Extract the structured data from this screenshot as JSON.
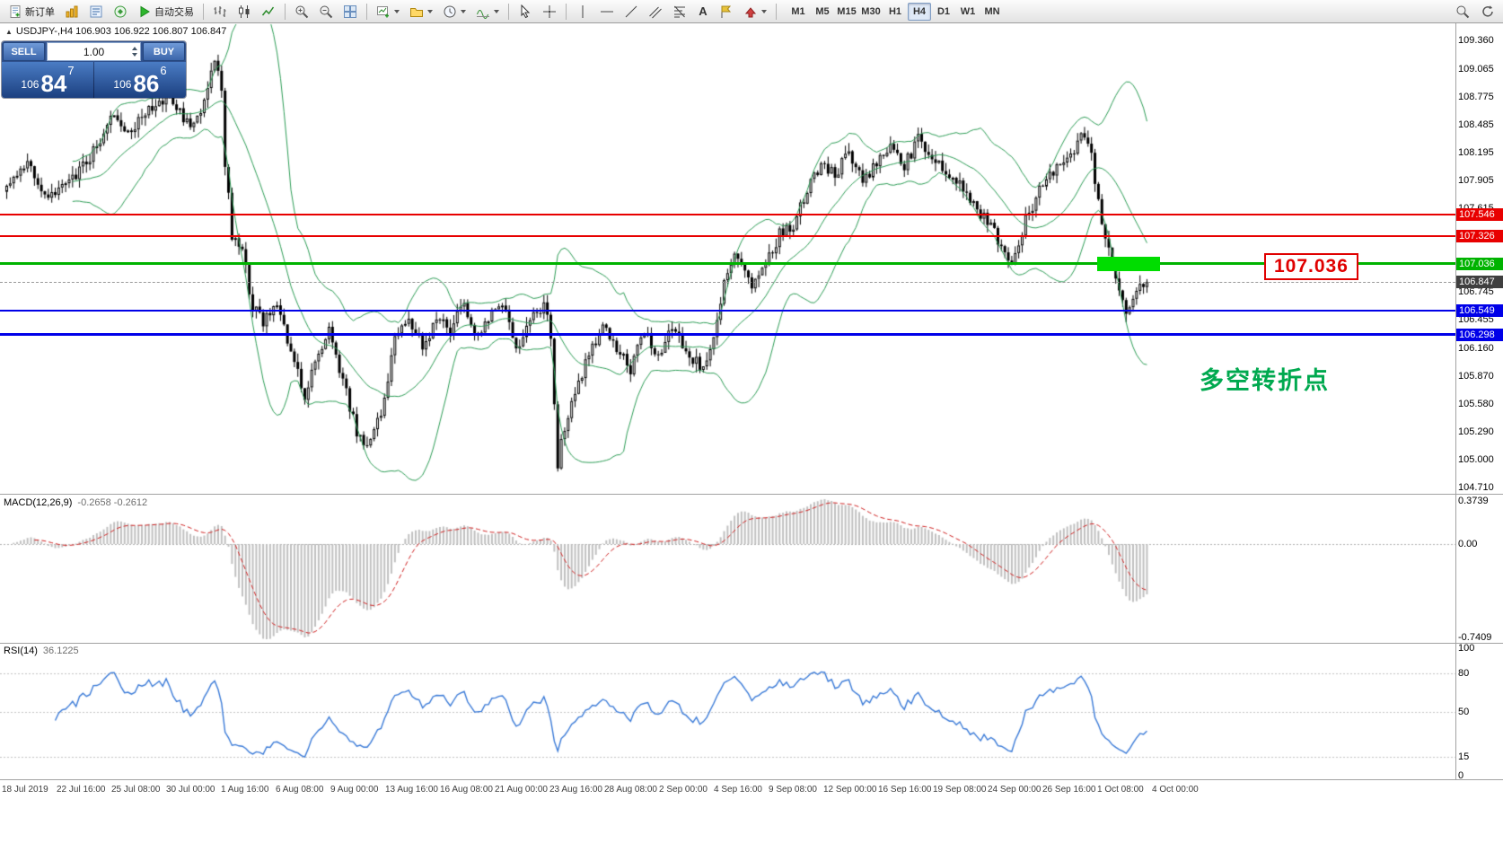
{
  "toolbar": {
    "new_order_label": "新订单",
    "auto_trading_label": "自动交易",
    "text_tool_label": "A",
    "timeframes": [
      "M1",
      "M5",
      "M15",
      "M30",
      "H1",
      "H4",
      "D1",
      "W1",
      "MN"
    ],
    "active_timeframe": "H4"
  },
  "chart": {
    "collapse_arrow": "▲",
    "symbol_line": "USDJPY-,H4  106.903 106.922 106.807 106.847",
    "trade_panel": {
      "sell_label": "SELL",
      "buy_label": "BUY",
      "volume": "1.00",
      "sell_price": {
        "prefix": "106",
        "big": "84",
        "sup": "7"
      },
      "buy_price": {
        "prefix": "106",
        "big": "86",
        "sup": "6"
      }
    },
    "callout_text": "107.036",
    "annotation_text": "多空转折点",
    "macd_label": "MACD(12,26,9)",
    "macd_values": "-0.2658 -0.2612",
    "rsi_label": "RSI(14)",
    "rsi_value": "36.1225"
  },
  "chart_data": {
    "type": "candlestick",
    "symbol": "USDJPY-",
    "timeframe": "H4",
    "ohlc": {
      "open": 106.903,
      "high": 106.922,
      "low": 106.807,
      "close": 106.847
    },
    "last_price": 106.847,
    "price_axis": {
      "min": 104.71,
      "max": 109.36,
      "ticks": [
        "109.360",
        "109.065",
        "108.775",
        "108.485",
        "108.195",
        "107.905",
        "107.615",
        "107.326",
        "107.036",
        "106.745",
        "106.455",
        "106.160",
        "105.870",
        "105.580",
        "105.290",
        "105.000",
        "104.710"
      ]
    },
    "horizontal_lines": [
      {
        "price": 107.546,
        "label": "107.546",
        "color": "#e80000",
        "width": 2
      },
      {
        "price": 107.326,
        "label": "107.326",
        "color": "#e80000",
        "width": 2
      },
      {
        "price": 107.036,
        "label": "107.036",
        "color": "#00b300",
        "width": 3
      },
      {
        "price": 106.549,
        "label": "106.549",
        "color": "#0000e8",
        "width": 2
      },
      {
        "price": 106.298,
        "label": "106.298",
        "color": "#0000e8",
        "width": 3
      }
    ],
    "price_badges": [
      {
        "price": 107.546,
        "label": "107.546",
        "color": "#e80000"
      },
      {
        "price": 107.326,
        "label": "107.326",
        "color": "#e80000"
      },
      {
        "price": 107.036,
        "label": "107.036",
        "color": "#00b300"
      },
      {
        "price": 106.847,
        "label": "106.847",
        "color": "#3f3f3f"
      },
      {
        "price": 106.549,
        "label": "106.549",
        "color": "#0000e8"
      },
      {
        "price": 106.298,
        "label": "106.298",
        "color": "#0000e8"
      }
    ],
    "highlight_box": {
      "price": 107.036,
      "color": "#00dd00"
    },
    "bollinger": {
      "period": 20,
      "deviation": 2,
      "color": "#2e9e57"
    },
    "macd": {
      "params": [
        12,
        26,
        9
      ],
      "main_value": -0.2658,
      "signal_value": -0.2612,
      "scale": {
        "top": "0.3739",
        "zero": "0.00",
        "bottom": "-0.7409"
      },
      "histogram_color": "#c0c0c0",
      "signal_color": "#d02020"
    },
    "rsi": {
      "period": 14,
      "value": 36.1225,
      "scale_labels": [
        "100",
        "80",
        "50",
        "15",
        "0"
      ],
      "levels": [
        80,
        50,
        15
      ],
      "line_color": "#3b7bd8"
    },
    "time_axis_labels": [
      "18 Jul 2019",
      "22 Jul 16:00",
      "25 Jul 08:00",
      "30 Jul 00:00",
      "1 Aug 16:00",
      "6 Aug 08:00",
      "9 Aug 00:00",
      "13 Aug 16:00",
      "16 Aug 08:00",
      "21 Aug 00:00",
      "23 Aug 16:00",
      "28 Aug 08:00",
      "2 Sep 00:00",
      "4 Sep 16:00",
      "9 Sep 08:00",
      "12 Sep 00:00",
      "16 Sep 16:00",
      "19 Sep 08:00",
      "24 Sep 00:00",
      "26 Sep 16:00",
      "1 Oct 08:00",
      "4 Oct 00:00"
    ],
    "num_candles": 330,
    "seed": 9,
    "price_path_anchors": [
      [
        0,
        107.8
      ],
      [
        6,
        108.05
      ],
      [
        12,
        107.75
      ],
      [
        18,
        107.9
      ],
      [
        24,
        108.15
      ],
      [
        30,
        108.55
      ],
      [
        36,
        108.45
      ],
      [
        42,
        108.65
      ],
      [
        46,
        108.8
      ],
      [
        50,
        108.6
      ],
      [
        54,
        108.45
      ],
      [
        57,
        108.75
      ],
      [
        60,
        109.2
      ],
      [
        62,
        108.85
      ],
      [
        63,
        108.1
      ],
      [
        65,
        107.35
      ],
      [
        68,
        107.15
      ],
      [
        71,
        106.6
      ],
      [
        74,
        106.45
      ],
      [
        78,
        106.6
      ],
      [
        82,
        106.1
      ],
      [
        86,
        105.65
      ],
      [
        89,
        106.05
      ],
      [
        93,
        106.35
      ],
      [
        97,
        105.8
      ],
      [
        101,
        105.3
      ],
      [
        104,
        105.15
      ],
      [
        108,
        105.45
      ],
      [
        112,
        106.3
      ],
      [
        116,
        106.45
      ],
      [
        120,
        106.15
      ],
      [
        124,
        106.5
      ],
      [
        128,
        106.35
      ],
      [
        132,
        106.6
      ],
      [
        136,
        106.25
      ],
      [
        140,
        106.5
      ],
      [
        144,
        106.6
      ],
      [
        147,
        106.15
      ],
      [
        151,
        106.45
      ],
      [
        155,
        106.6
      ],
      [
        157,
        106.3
      ],
      [
        159,
        104.95
      ],
      [
        161,
        105.35
      ],
      [
        164,
        105.75
      ],
      [
        168,
        106.05
      ],
      [
        172,
        106.4
      ],
      [
        176,
        106.15
      ],
      [
        180,
        105.95
      ],
      [
        184,
        106.3
      ],
      [
        188,
        106.1
      ],
      [
        192,
        106.35
      ],
      [
        196,
        106.15
      ],
      [
        200,
        105.95
      ],
      [
        204,
        106.25
      ],
      [
        207,
        106.9
      ],
      [
        211,
        107.15
      ],
      [
        215,
        106.85
      ],
      [
        219,
        107.0
      ],
      [
        223,
        107.35
      ],
      [
        227,
        107.45
      ],
      [
        231,
        107.8
      ],
      [
        235,
        108.1
      ],
      [
        239,
        107.95
      ],
      [
        243,
        108.2
      ],
      [
        247,
        107.9
      ],
      [
        251,
        108.1
      ],
      [
        255,
        108.25
      ],
      [
        259,
        108.05
      ],
      [
        263,
        108.35
      ],
      [
        267,
        108.15
      ],
      [
        271,
        108.0
      ],
      [
        275,
        107.9
      ],
      [
        279,
        107.65
      ],
      [
        283,
        107.5
      ],
      [
        287,
        107.2
      ],
      [
        290,
        107.0
      ],
      [
        294,
        107.5
      ],
      [
        298,
        107.8
      ],
      [
        302,
        108.0
      ],
      [
        306,
        108.1
      ],
      [
        310,
        108.4
      ],
      [
        313,
        108.15
      ],
      [
        315,
        107.7
      ],
      [
        317,
        107.3
      ],
      [
        319,
        107.0
      ],
      [
        321,
        106.8
      ],
      [
        323,
        106.55
      ],
      [
        325,
        106.7
      ],
      [
        327,
        106.8
      ],
      [
        329,
        106.85
      ]
    ]
  }
}
